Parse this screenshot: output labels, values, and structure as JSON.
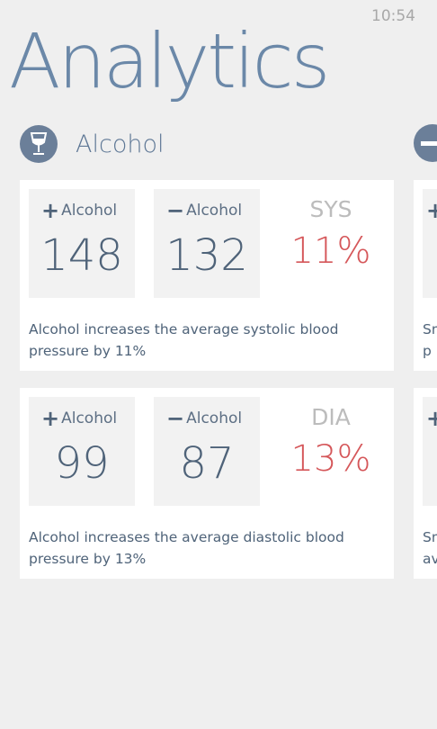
{
  "status_bar": {
    "time": "10:54"
  },
  "page": {
    "title": "Analytics"
  },
  "section": {
    "label": "Alcohol",
    "icon": "wine-glass-icon",
    "next_icon": "cigarette-icon"
  },
  "cards": [
    {
      "plus_label": "Alcohol",
      "plus_value": "148",
      "minus_label": "Alcohol",
      "minus_value": "132",
      "metric": "SYS",
      "percent": "11%",
      "description": "Alcohol increases the average systolic blood pressure by 11%"
    },
    {
      "plus_label": "Alcohol",
      "plus_value": "99",
      "minus_label": "Alcohol",
      "minus_value": "87",
      "metric": "DIA",
      "percent": "13%",
      "description": "Alcohol increases the average diastolic blood pressure by 13%"
    }
  ],
  "next_cards": [
    {
      "description_fragment": "Sm\np"
    },
    {
      "description_fragment": "Sm\nav"
    }
  ],
  "colors": {
    "accent": "#6b88a8",
    "value_text": "#4f6379",
    "percent": "#d5575a",
    "background": "#efefef"
  }
}
